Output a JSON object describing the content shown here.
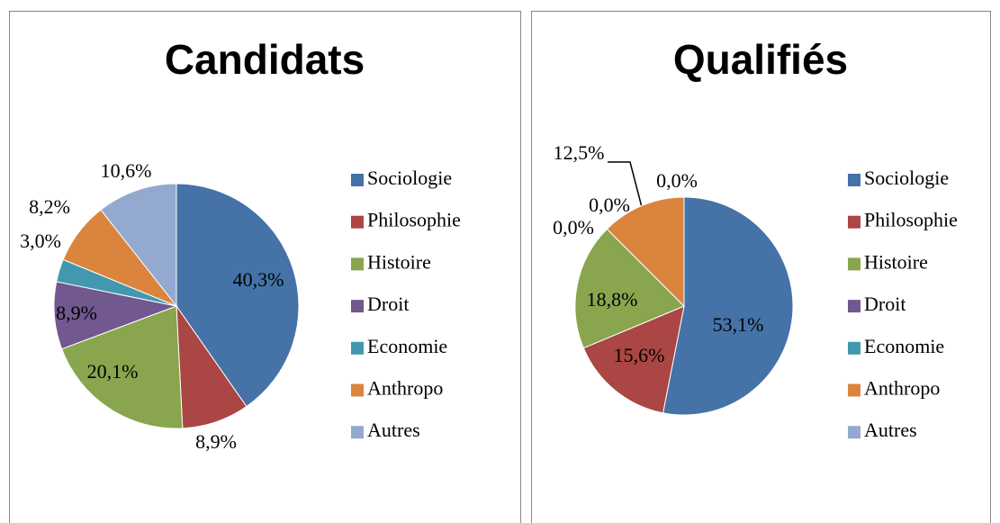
{
  "chart_data": [
    {
      "type": "pie",
      "title": "Candidats",
      "categories": [
        "Sociologie",
        "Philosophie",
        "Histoire",
        "Droit",
        "Economie",
        "Anthropo",
        "Autres"
      ],
      "values": [
        40.3,
        8.9,
        20.1,
        8.9,
        3.0,
        8.2,
        10.6
      ],
      "value_labels": [
        "40,3%",
        "8,9%",
        "20,1%",
        "8,9%",
        "3,0%",
        "8,2%",
        "10,6%"
      ],
      "colors": [
        "#4572a7",
        "#aa4643",
        "#89a54e",
        "#71588f",
        "#4198af",
        "#db843d",
        "#93a9cf"
      ],
      "legend": "right"
    },
    {
      "type": "pie",
      "title": "Qualifiés",
      "categories": [
        "Sociologie",
        "Philosophie",
        "Histoire",
        "Droit",
        "Economie",
        "Anthropo",
        "Autres"
      ],
      "values": [
        53.1,
        15.6,
        18.8,
        0.0,
        0.0,
        12.5,
        0.0
      ],
      "value_labels": [
        "53,1%",
        "15,6%",
        "18,8%",
        "0,0%",
        "0,0%",
        "12,5%",
        "0,0%"
      ],
      "colors": [
        "#4572a7",
        "#aa4643",
        "#89a54e",
        "#71588f",
        "#4198af",
        "#db843d",
        "#93a9cf"
      ],
      "legend": "right"
    }
  ]
}
